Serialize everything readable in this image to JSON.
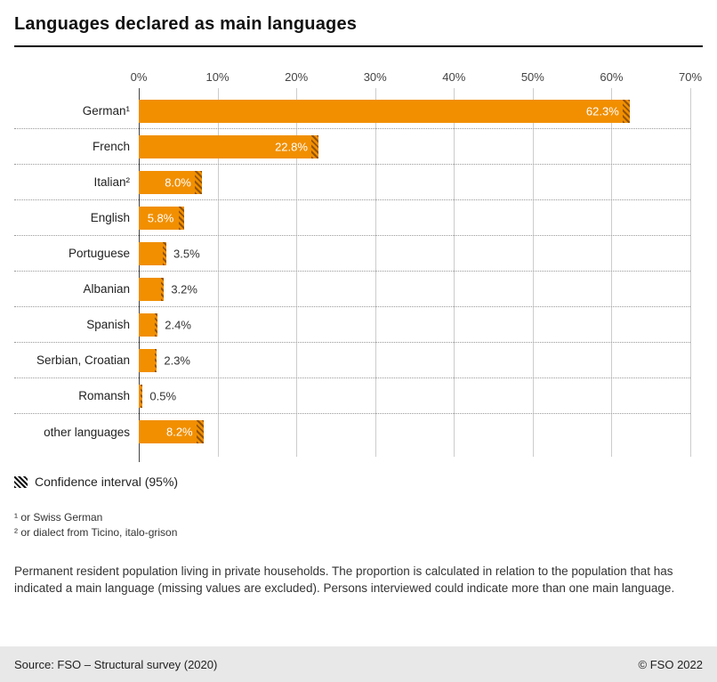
{
  "title": "Languages declared as main languages",
  "chart_data": {
    "type": "bar",
    "orientation": "horizontal",
    "title": "Languages declared as main languages",
    "categories": [
      "German¹",
      "French",
      "Italian²",
      "English",
      "Portuguese",
      "Albanian",
      "Spanish",
      "Serbian, Croatian",
      "Romansh",
      "other languages"
    ],
    "values": [
      62.3,
      22.8,
      8.0,
      5.8,
      3.5,
      3.2,
      2.4,
      2.3,
      0.5,
      8.2
    ],
    "value_labels": [
      "62.3%",
      "22.8%",
      "8.0%",
      "5.8%",
      "3.5%",
      "3.2%",
      "2.4%",
      "2.3%",
      "0.5%",
      "8.2%"
    ],
    "label_inside": [
      true,
      true,
      true,
      true,
      false,
      false,
      false,
      false,
      false,
      true
    ],
    "xlim": [
      0,
      70
    ],
    "x_ticks": [
      "0%",
      "10%",
      "20%",
      "30%",
      "40%",
      "50%",
      "60%",
      "70%"
    ],
    "bar_color": "#F18F00",
    "grid": true,
    "confidence_interval_hatch": true
  },
  "legend": {
    "label": "Confidence interval (95%)"
  },
  "footnotes": [
    "¹ or Swiss German",
    "² or dialect from Ticino, italo-grison"
  ],
  "note": "Permanent resident population living in private households. The proportion is calculated in relation to the population that has indicated a main language (missing values are excluded). Persons interviewed could indicate more than one main language.",
  "footer": {
    "source": "Source: FSO – Structural survey (2020)",
    "copyright": "© FSO 2022"
  }
}
